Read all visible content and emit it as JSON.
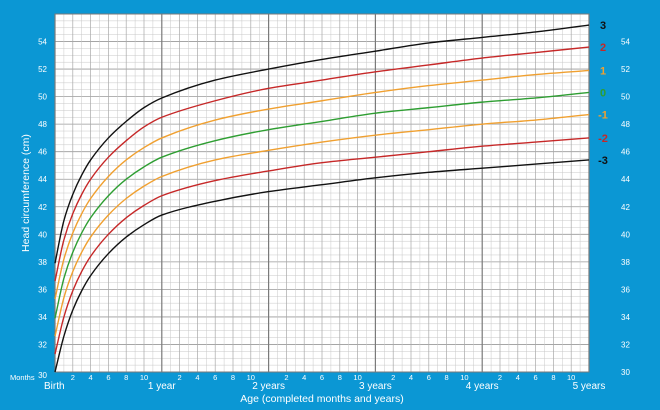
{
  "chart_data": {
    "type": "line",
    "title": "",
    "xlabel": "Age (completed months and years)",
    "ylabel": "Head circumference (cm)",
    "x_unit_label": "Months",
    "x_range_months": [
      0,
      60
    ],
    "ylim": [
      30,
      56
    ],
    "y_tick_values": [
      30,
      32,
      34,
      36,
      38,
      40,
      42,
      44,
      46,
      48,
      50,
      52,
      54
    ],
    "y_ticks": [
      "30",
      "32",
      "34",
      "36",
      "38",
      "40",
      "42",
      "44",
      "46",
      "48",
      "50",
      "52",
      "54"
    ],
    "x_month_ticks": [
      "2",
      "4",
      "6",
      "8",
      "10"
    ],
    "x_year_ticks": [
      {
        "months": 0,
        "label": "Birth"
      },
      {
        "months": 12,
        "label": "1 year"
      },
      {
        "months": 24,
        "label": "2 years"
      },
      {
        "months": 36,
        "label": "3 years"
      },
      {
        "months": 48,
        "label": "4 years"
      },
      {
        "months": 60,
        "label": "5 years"
      }
    ],
    "grid": true,
    "x": [
      0,
      1,
      2,
      3,
      4,
      6,
      8,
      10,
      12,
      18,
      24,
      30,
      36,
      42,
      48,
      54,
      60
    ],
    "series": [
      {
        "name": "3",
        "color": "#111111",
        "values": [
          37.9,
          41.0,
          42.9,
          44.3,
          45.4,
          47.0,
          48.2,
          49.2,
          49.9,
          51.2,
          52.0,
          52.7,
          53.3,
          53.9,
          54.3,
          54.7,
          55.2
        ]
      },
      {
        "name": "2",
        "color": "#c62828",
        "values": [
          36.6,
          39.6,
          41.5,
          42.9,
          44.0,
          45.6,
          46.8,
          47.8,
          48.5,
          49.7,
          50.6,
          51.2,
          51.8,
          52.3,
          52.8,
          53.2,
          53.6
        ]
      },
      {
        "name": "1",
        "color": "#f0a030",
        "values": [
          35.3,
          38.2,
          40.1,
          41.5,
          42.6,
          44.2,
          45.4,
          46.3,
          47.0,
          48.3,
          49.1,
          49.7,
          50.3,
          50.8,
          51.2,
          51.6,
          51.9
        ]
      },
      {
        "name": "0",
        "color": "#2e9e32",
        "values": [
          33.9,
          36.8,
          38.7,
          40.1,
          41.2,
          42.8,
          44.0,
          44.9,
          45.6,
          46.8,
          47.6,
          48.2,
          48.8,
          49.2,
          49.6,
          49.9,
          50.3
        ]
      },
      {
        "name": "-1",
        "color": "#f0a030",
        "values": [
          32.6,
          35.4,
          37.3,
          38.7,
          39.8,
          41.4,
          42.6,
          43.5,
          44.2,
          45.4,
          46.1,
          46.7,
          47.2,
          47.6,
          48.0,
          48.3,
          48.7
        ]
      },
      {
        "name": "-2",
        "color": "#c62828",
        "values": [
          31.3,
          34.0,
          35.9,
          37.3,
          38.4,
          40.0,
          41.2,
          42.1,
          42.8,
          43.9,
          44.6,
          45.2,
          45.6,
          46.0,
          46.4,
          46.7,
          47.0
        ]
      },
      {
        "name": "-3",
        "color": "#111111",
        "values": [
          30.0,
          32.6,
          34.5,
          35.9,
          37.0,
          38.6,
          39.8,
          40.7,
          41.4,
          42.4,
          43.1,
          43.6,
          44.1,
          44.5,
          44.8,
          45.1,
          45.4
        ]
      }
    ]
  }
}
